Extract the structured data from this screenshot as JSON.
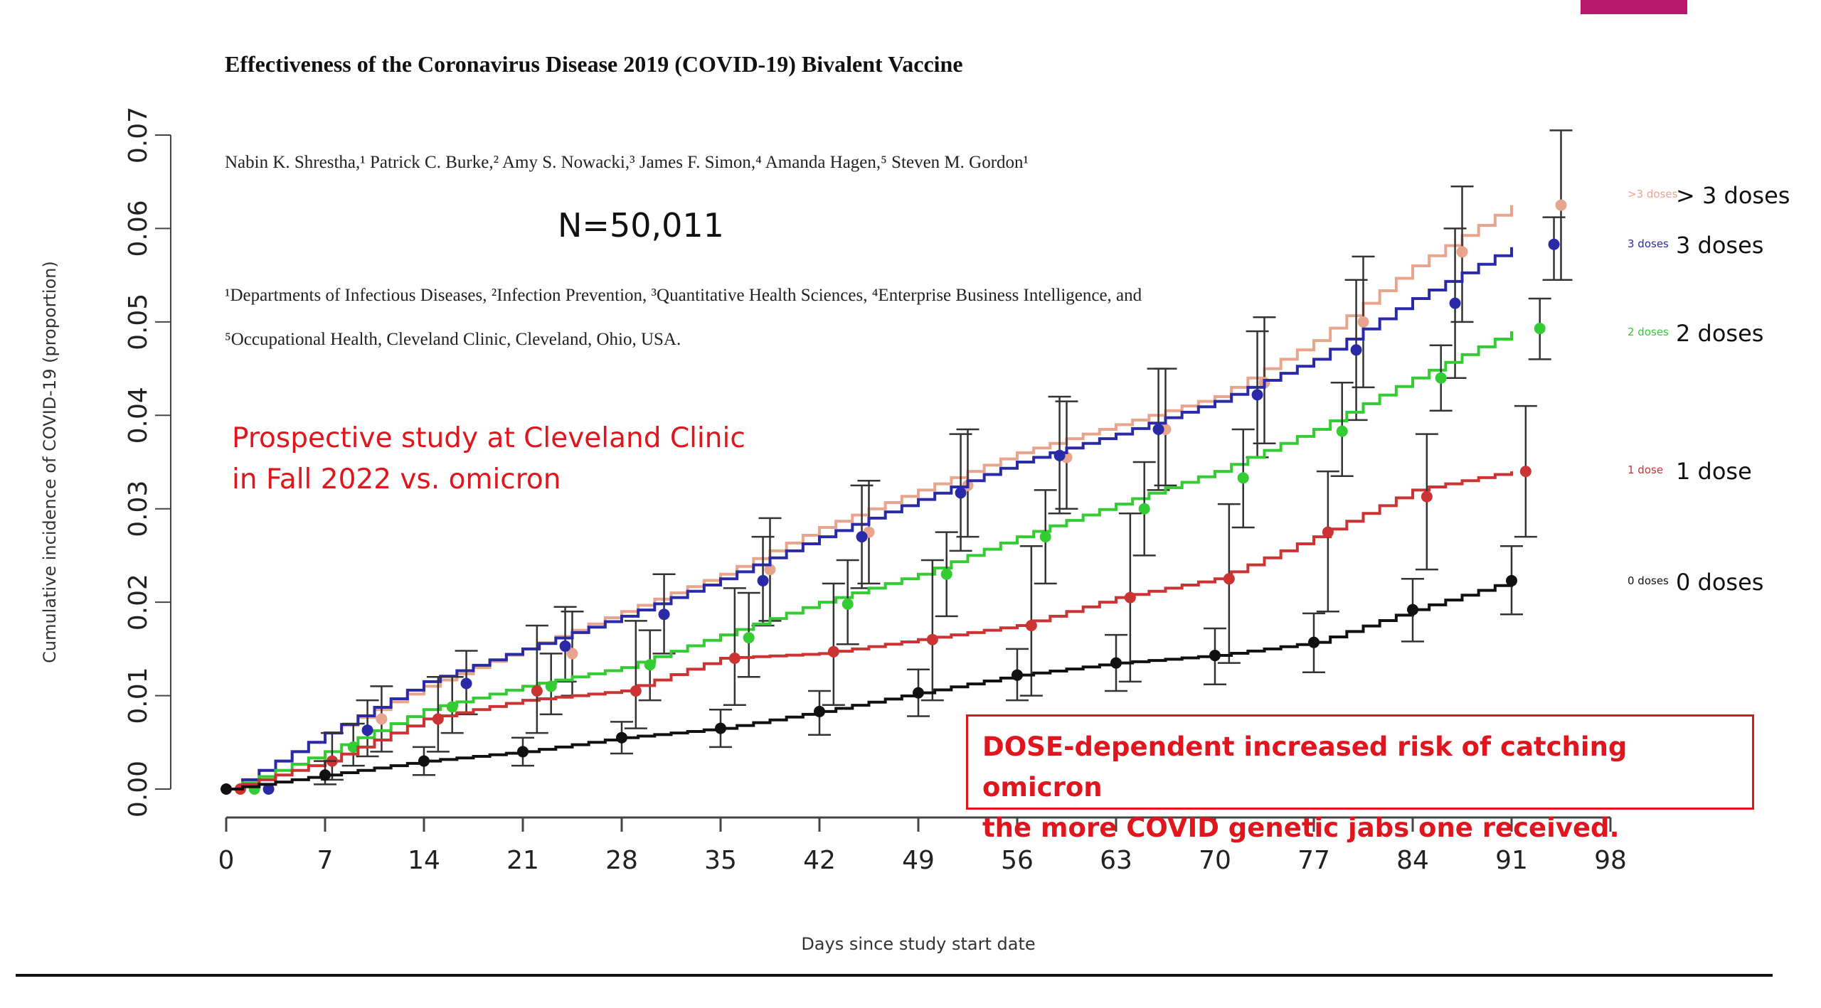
{
  "colors": {
    "accent": "#b8176b",
    "annotation": "#e0161e",
    "dose0": "#111111",
    "dose1": "#cc3333",
    "dose2": "#33cc33",
    "dose3": "#2a2aa8",
    "dose3plus": "#e8a48c"
  },
  "paper": {
    "title": "Effectiveness of the Coronavirus Disease 2019 (COVID-19) Bivalent Vaccine",
    "authors": "Nabin K. Shrestha,¹ Patrick C. Burke,² Amy S. Nowacki,³ James F. Simon,⁴ Amanda Hagen,⁵ Steven M. Gordon¹",
    "affiliations": "¹Departments of Infectious Diseases, ²Infection Prevention, ³Quantitative Health Sciences, ⁴Enterprise Business Intelligence, and ⁵Occupational Health, Cleveland Clinic, Cleveland, Ohio, USA."
  },
  "annotations": {
    "n_label": "N=50,011",
    "study_note_line1": "Prospective study at Cleveland Clinic",
    "study_note_line2": "in Fall 2022 vs. omicron",
    "callout_line1": "DOSE-dependent increased risk of catching omicron",
    "callout_line2": "the more COVID genetic jabs one received."
  },
  "legend": [
    {
      "small": ">3 doses",
      "big": "> 3 doses",
      "color_key": "dose3plus"
    },
    {
      "small": "3 doses",
      "big": "3 doses",
      "color_key": "dose3"
    },
    {
      "small": "2 doses",
      "big": "2 doses",
      "color_key": "dose2"
    },
    {
      "small": "1 dose",
      "big": "1 dose",
      "color_key": "dose1"
    },
    {
      "small": "0 doses",
      "big": "0 doses",
      "color_key": "dose0"
    }
  ],
  "chart_data": {
    "type": "line",
    "xlabel": "Days since study start date",
    "ylabel": "Cumulative incidence of COVID-19 (proportion)",
    "xlim": [
      0,
      98
    ],
    "ylim": [
      0,
      0.07
    ],
    "xticks": [
      0,
      7,
      14,
      21,
      28,
      35,
      42,
      49,
      56,
      63,
      70,
      77,
      84,
      91,
      98
    ],
    "yticks": [
      "0.00",
      "0.01",
      "0.02",
      "0.03",
      "0.04",
      "0.05",
      "0.06",
      "0.07"
    ],
    "grid": false,
    "legend_placement": "right",
    "series": [
      {
        "name": ">3 doses",
        "color_key": "dose3plus",
        "x": [
          0,
          7,
          14,
          21,
          28,
          35,
          42,
          49,
          56,
          63,
          70,
          77,
          84,
          91
        ],
        "y": [
          0,
          0.006,
          0.011,
          0.015,
          0.019,
          0.023,
          0.028,
          0.032,
          0.036,
          0.039,
          0.042,
          0.048,
          0.056,
          0.0625
        ],
        "points": [
          {
            "x": 1,
            "y": 0,
            "lo": 0,
            "hi": 0
          },
          {
            "x": 11,
            "y": 0.0075,
            "lo": 0.004,
            "hi": 0.011
          },
          {
            "x": 24.5,
            "y": 0.0145,
            "lo": 0.01,
            "hi": 0.019
          },
          {
            "x": 38.5,
            "y": 0.0235,
            "lo": 0.018,
            "hi": 0.029
          },
          {
            "x": 45.5,
            "y": 0.0275,
            "lo": 0.022,
            "hi": 0.033
          },
          {
            "x": 52.5,
            "y": 0.0325,
            "lo": 0.027,
            "hi": 0.0385
          },
          {
            "x": 59.5,
            "y": 0.0355,
            "lo": 0.03,
            "hi": 0.0415
          },
          {
            "x": 66.5,
            "y": 0.0385,
            "lo": 0.0325,
            "hi": 0.045
          },
          {
            "x": 73.5,
            "y": 0.0435,
            "lo": 0.037,
            "hi": 0.0505
          },
          {
            "x": 80.5,
            "y": 0.05,
            "lo": 0.043,
            "hi": 0.057
          },
          {
            "x": 87.5,
            "y": 0.0575,
            "lo": 0.05,
            "hi": 0.0645
          },
          {
            "x": 94.5,
            "y": 0.0625,
            "lo": 0.0545,
            "hi": 0.0705
          }
        ]
      },
      {
        "name": "3 doses",
        "color_key": "dose3",
        "x": [
          0,
          7,
          14,
          21,
          28,
          35,
          42,
          49,
          56,
          63,
          70,
          77,
          84,
          91
        ],
        "y": [
          0,
          0.006,
          0.0115,
          0.015,
          0.0185,
          0.0225,
          0.027,
          0.031,
          0.035,
          0.038,
          0.0415,
          0.046,
          0.0525,
          0.058
        ],
        "points": [
          {
            "x": 3,
            "y": 0,
            "lo": 0,
            "hi": 0
          },
          {
            "x": 10,
            "y": 0.0063,
            "lo": 0.0035,
            "hi": 0.0095
          },
          {
            "x": 17,
            "y": 0.0113,
            "lo": 0.008,
            "hi": 0.0148
          },
          {
            "x": 24,
            "y": 0.0153,
            "lo": 0.0115,
            "hi": 0.0195
          },
          {
            "x": 31,
            "y": 0.0187,
            "lo": 0.0145,
            "hi": 0.023
          },
          {
            "x": 38,
            "y": 0.0223,
            "lo": 0.0175,
            "hi": 0.027
          },
          {
            "x": 45,
            "y": 0.027,
            "lo": 0.0215,
            "hi": 0.0325
          },
          {
            "x": 52,
            "y": 0.0317,
            "lo": 0.0255,
            "hi": 0.038
          },
          {
            "x": 59,
            "y": 0.0357,
            "lo": 0.0295,
            "hi": 0.042
          },
          {
            "x": 66,
            "y": 0.0385,
            "lo": 0.032,
            "hi": 0.045
          },
          {
            "x": 73,
            "y": 0.0422,
            "lo": 0.0355,
            "hi": 0.049
          },
          {
            "x": 80,
            "y": 0.047,
            "lo": 0.0395,
            "hi": 0.0545
          },
          {
            "x": 87,
            "y": 0.052,
            "lo": 0.044,
            "hi": 0.06
          },
          {
            "x": 94,
            "y": 0.0583,
            "lo": 0.0545,
            "hi": 0.0612
          }
        ]
      },
      {
        "name": "2 doses",
        "color_key": "dose2",
        "x": [
          0,
          7,
          14,
          21,
          28,
          35,
          42,
          49,
          56,
          63,
          70,
          77,
          84,
          91
        ],
        "y": [
          0,
          0.004,
          0.0085,
          0.011,
          0.013,
          0.0165,
          0.02,
          0.023,
          0.027,
          0.0305,
          0.034,
          0.0385,
          0.044,
          0.049
        ],
        "points": [
          {
            "x": 2,
            "y": 0,
            "lo": 0,
            "hi": 0
          },
          {
            "x": 9,
            "y": 0.0045,
            "lo": 0.0025,
            "hi": 0.007
          },
          {
            "x": 16,
            "y": 0.0088,
            "lo": 0.006,
            "hi": 0.012
          },
          {
            "x": 23,
            "y": 0.011,
            "lo": 0.008,
            "hi": 0.0145
          },
          {
            "x": 30,
            "y": 0.0133,
            "lo": 0.0095,
            "hi": 0.017
          },
          {
            "x": 37,
            "y": 0.0162,
            "lo": 0.012,
            "hi": 0.021
          },
          {
            "x": 44,
            "y": 0.0198,
            "lo": 0.0155,
            "hi": 0.0245
          },
          {
            "x": 51,
            "y": 0.023,
            "lo": 0.0185,
            "hi": 0.0275
          },
          {
            "x": 58,
            "y": 0.027,
            "lo": 0.022,
            "hi": 0.032
          },
          {
            "x": 65,
            "y": 0.03,
            "lo": 0.025,
            "hi": 0.035
          },
          {
            "x": 72,
            "y": 0.0333,
            "lo": 0.028,
            "hi": 0.0385
          },
          {
            "x": 79,
            "y": 0.0383,
            "lo": 0.0335,
            "hi": 0.0435
          },
          {
            "x": 86,
            "y": 0.044,
            "lo": 0.0405,
            "hi": 0.0475
          },
          {
            "x": 93,
            "y": 0.0493,
            "lo": 0.046,
            "hi": 0.0525
          }
        ]
      },
      {
        "name": "1 dose",
        "color_key": "dose1",
        "x": [
          0,
          7,
          14,
          21,
          28,
          35,
          42,
          49,
          56,
          63,
          70,
          77,
          84,
          91
        ],
        "y": [
          0,
          0.003,
          0.0075,
          0.0095,
          0.0105,
          0.014,
          0.0145,
          0.016,
          0.0175,
          0.0205,
          0.0225,
          0.027,
          0.032,
          0.034
        ],
        "points": [
          {
            "x": 1,
            "y": 0,
            "lo": 0,
            "hi": 0
          },
          {
            "x": 7.5,
            "y": 0.003,
            "lo": 0.001,
            "hi": 0.006
          },
          {
            "x": 15,
            "y": 0.0075,
            "lo": 0.004,
            "hi": 0.012
          },
          {
            "x": 22,
            "y": 0.0105,
            "lo": 0.006,
            "hi": 0.0175
          },
          {
            "x": 29,
            "y": 0.0105,
            "lo": 0.0065,
            "hi": 0.018
          },
          {
            "x": 36,
            "y": 0.014,
            "lo": 0.009,
            "hi": 0.0215
          },
          {
            "x": 43,
            "y": 0.0147,
            "lo": 0.009,
            "hi": 0.022
          },
          {
            "x": 50,
            "y": 0.016,
            "lo": 0.0095,
            "hi": 0.0245
          },
          {
            "x": 57,
            "y": 0.0175,
            "lo": 0.01,
            "hi": 0.026
          },
          {
            "x": 64,
            "y": 0.0205,
            "lo": 0.0115,
            "hi": 0.0295
          },
          {
            "x": 71,
            "y": 0.0225,
            "lo": 0.0135,
            "hi": 0.0305
          },
          {
            "x": 78,
            "y": 0.0275,
            "lo": 0.019,
            "hi": 0.034
          },
          {
            "x": 85,
            "y": 0.0313,
            "lo": 0.0235,
            "hi": 0.038
          },
          {
            "x": 92,
            "y": 0.034,
            "lo": 0.027,
            "hi": 0.041
          }
        ]
      },
      {
        "name": "0 doses",
        "color_key": "dose0",
        "x": [
          0,
          7,
          14,
          21,
          28,
          35,
          42,
          49,
          56,
          63,
          70,
          77,
          84,
          91
        ],
        "y": [
          0,
          0.0015,
          0.003,
          0.004,
          0.0055,
          0.0065,
          0.0083,
          0.0103,
          0.0122,
          0.0135,
          0.0143,
          0.0157,
          0.0192,
          0.0223
        ],
        "points": [
          {
            "x": 0,
            "y": 0,
            "lo": 0,
            "hi": 0
          },
          {
            "x": 7,
            "y": 0.0015,
            "lo": 0.0005,
            "hi": 0.003
          },
          {
            "x": 14,
            "y": 0.003,
            "lo": 0.0015,
            "hi": 0.0045
          },
          {
            "x": 21,
            "y": 0.004,
            "lo": 0.0025,
            "hi": 0.0055
          },
          {
            "x": 28,
            "y": 0.0055,
            "lo": 0.0038,
            "hi": 0.0072
          },
          {
            "x": 35,
            "y": 0.0065,
            "lo": 0.0045,
            "hi": 0.0085
          },
          {
            "x": 42,
            "y": 0.0083,
            "lo": 0.0058,
            "hi": 0.0105
          },
          {
            "x": 49,
            "y": 0.0103,
            "lo": 0.0078,
            "hi": 0.0128
          },
          {
            "x": 56,
            "y": 0.0122,
            "lo": 0.0095,
            "hi": 0.015
          },
          {
            "x": 63,
            "y": 0.0135,
            "lo": 0.0105,
            "hi": 0.0165
          },
          {
            "x": 70,
            "y": 0.0143,
            "lo": 0.0112,
            "hi": 0.0172
          },
          {
            "x": 77,
            "y": 0.0157,
            "lo": 0.0125,
            "hi": 0.0188
          },
          {
            "x": 84,
            "y": 0.0192,
            "lo": 0.0158,
            "hi": 0.0225
          },
          {
            "x": 91,
            "y": 0.0223,
            "lo": 0.0187,
            "hi": 0.026
          }
        ]
      }
    ]
  }
}
